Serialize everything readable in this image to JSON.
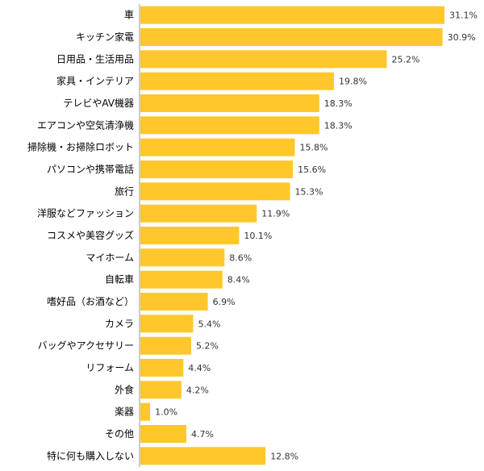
{
  "chart_data": {
    "type": "bar",
    "orientation": "horizontal",
    "categories": [
      "車",
      "キッチン家電",
      "日用品・生活用品",
      "家具・インテリア",
      "テレビやAV機器",
      "エアコンや空気清浄機",
      "掃除機・お掃除ロボット",
      "パソコンや携帯電話",
      "旅行",
      "洋服などファッション",
      "コスメや美容グッズ",
      "マイホーム",
      "自転車",
      "嗜好品（お酒など）",
      "カメラ",
      "バッグやアクセサリー",
      "リフォーム",
      "外食",
      "楽器",
      "その他",
      "特に何も購入しない"
    ],
    "values": [
      31.1,
      30.9,
      25.2,
      19.8,
      18.3,
      18.3,
      15.8,
      15.6,
      15.3,
      11.9,
      10.1,
      8.6,
      8.4,
      6.9,
      5.4,
      5.2,
      4.4,
      4.2,
      1.0,
      4.7,
      12.8
    ],
    "value_labels": [
      "31.1%",
      "30.9%",
      "25.2%",
      "19.8%",
      "18.3%",
      "18.3%",
      "15.8%",
      "15.6%",
      "15.3%",
      "11.9%",
      "10.1%",
      "8.6%",
      "8.4%",
      "6.9%",
      "5.4%",
      "5.2%",
      "4.4%",
      "4.2%",
      "1.0%",
      "4.7%",
      "12.8%"
    ],
    "xlim": [
      0,
      31.1
    ],
    "grid": false,
    "bar_color": "#FFC72C",
    "axis_color": "#999999"
  }
}
